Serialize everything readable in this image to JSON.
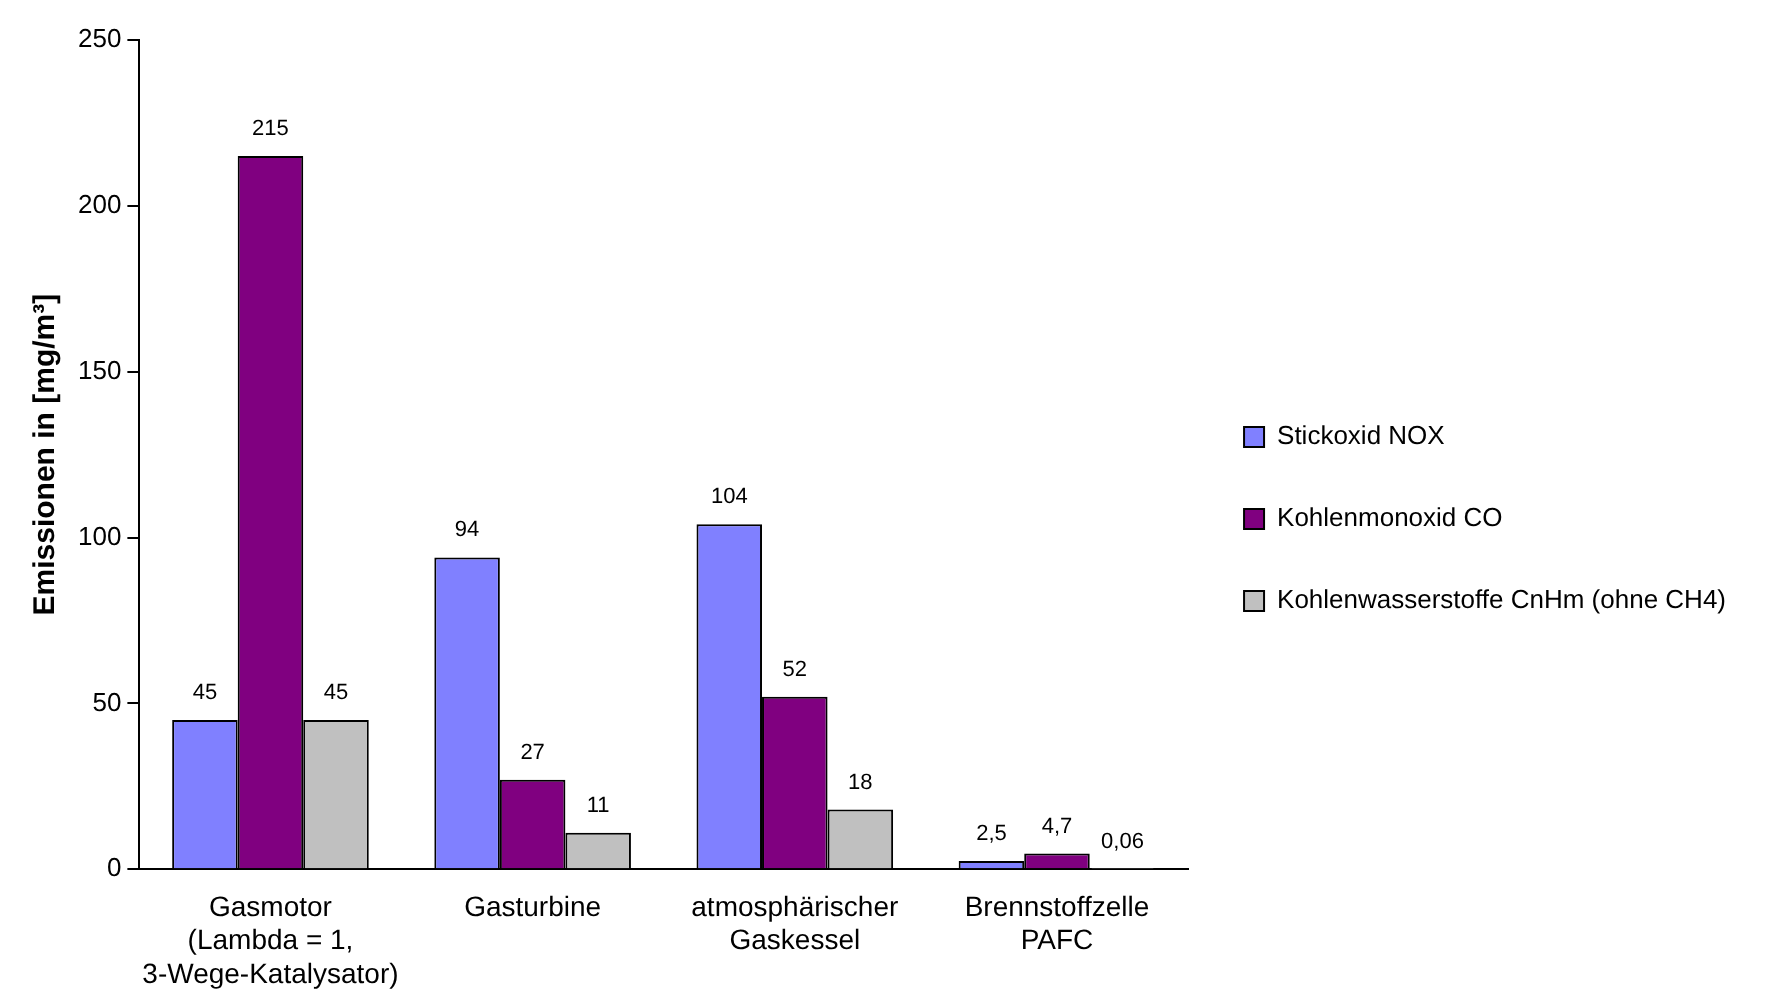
{
  "chart_data": {
    "type": "bar",
    "ylabel": "Emissionen in [mg/m³]",
    "categories": [
      "Gasmotor\n(Lambda = 1,\n3-Wege-Katalysator)",
      "Gasturbine",
      "atmosphärischer\nGaskessel",
      "Brennstoffzelle\nPAFC"
    ],
    "series": [
      {
        "name": "Stickoxid NOX",
        "color": "#8080ff",
        "values": [
          45,
          94,
          104,
          2.5
        ],
        "value_labels": [
          "45",
          "94",
          "104",
          "2,5"
        ]
      },
      {
        "name": "Kohlenmonoxid CO",
        "color": "#800080",
        "values": [
          215,
          27,
          52,
          4.7
        ],
        "value_labels": [
          "215",
          "27",
          "52",
          "4,7"
        ]
      },
      {
        "name": "Kohlenwasserstoffe CnHm (ohne CH4)",
        "color": "#c0c0c0",
        "values": [
          45,
          11,
          18,
          0.06
        ],
        "value_labels": [
          "45",
          "11",
          "18",
          "0,06"
        ]
      }
    ],
    "ylim": [
      0,
      250
    ],
    "yticks": [
      0,
      50,
      100,
      150,
      200,
      250
    ],
    "grid": false,
    "legend": "right"
  }
}
